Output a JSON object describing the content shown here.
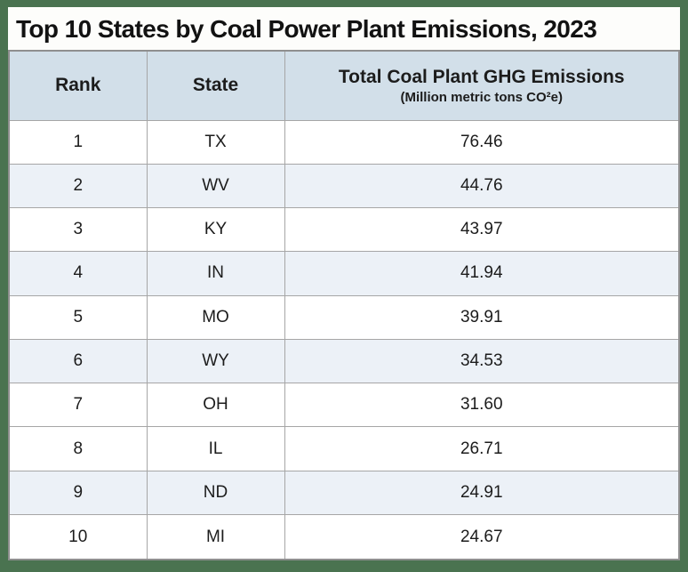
{
  "title": "Top 10 States by Coal Power Plant Emissions, 2023",
  "table": {
    "columns": [
      {
        "label": "Rank"
      },
      {
        "label": "State"
      },
      {
        "label": "Total Coal Plant GHG Emissions",
        "sublabel": "(Million metric tons CO²e)"
      }
    ],
    "rows": [
      {
        "rank": "1",
        "state": "TX",
        "emissions": "76.46",
        "shaded": false
      },
      {
        "rank": "2",
        "state": "WV",
        "emissions": "44.76",
        "shaded": true
      },
      {
        "rank": "3",
        "state": "KY",
        "emissions": "43.97",
        "shaded": false
      },
      {
        "rank": "4",
        "state": "IN",
        "emissions": "41.94",
        "shaded": true
      },
      {
        "rank": "5",
        "state": "MO",
        "emissions": "39.91",
        "shaded": false
      },
      {
        "rank": "6",
        "state": "WY",
        "emissions": "34.53",
        "shaded": true
      },
      {
        "rank": "7",
        "state": "OH",
        "emissions": "31.60",
        "shaded": false
      },
      {
        "rank": "8",
        "state": "IL",
        "emissions": "26.71",
        "shaded": false
      },
      {
        "rank": "9",
        "state": "ND",
        "emissions": "24.91",
        "shaded": true
      },
      {
        "rank": "10",
        "state": "MI",
        "emissions": "24.67",
        "shaded": false
      }
    ]
  },
  "colors": {
    "frame_green": "#4a7350",
    "header_blue": "#d2dfe9",
    "shaded_row_blue": "#ecf1f7",
    "border_gray": "#a6a6a6",
    "text": "#1c1c1c"
  },
  "chart_data": {
    "type": "table",
    "title": "Top 10 States by Coal Power Plant Emissions, 2023",
    "columns": [
      "Rank",
      "State",
      "Total Coal Plant GHG Emissions (Million metric tons CO²e)"
    ],
    "rows": [
      [
        1,
        "TX",
        76.46
      ],
      [
        2,
        "WV",
        44.76
      ],
      [
        3,
        "KY",
        43.97
      ],
      [
        4,
        "IN",
        41.94
      ],
      [
        5,
        "MO",
        39.91
      ],
      [
        6,
        "WY",
        34.53
      ],
      [
        7,
        "OH",
        31.6
      ],
      [
        8,
        "IL",
        26.71
      ],
      [
        9,
        "ND",
        24.91
      ],
      [
        10,
        "MI",
        24.67
      ]
    ]
  }
}
